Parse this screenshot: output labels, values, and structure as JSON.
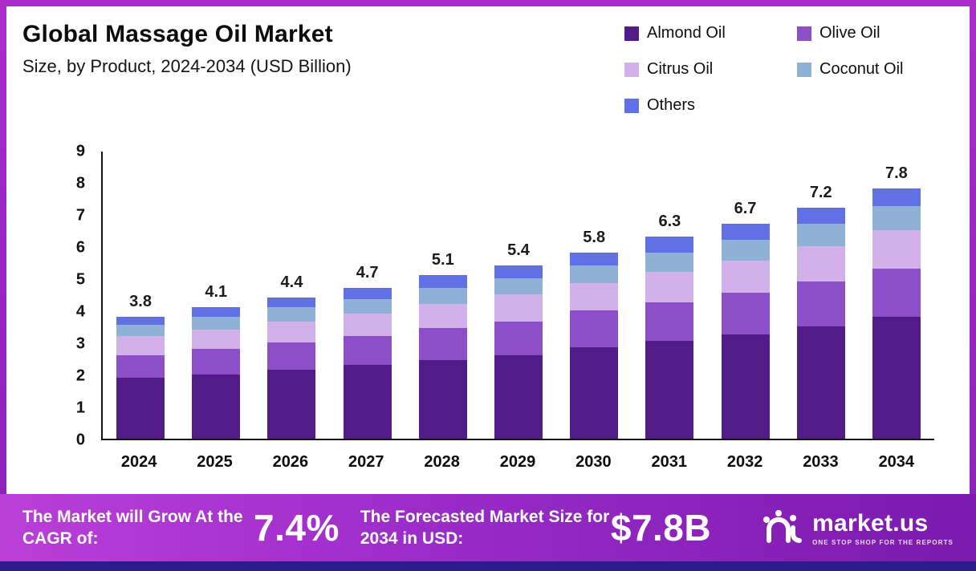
{
  "header": {
    "title": "Global Massage Oil Market",
    "subtitle": "Size, by Product, 2024-2034 (USD Billion)"
  },
  "chart_data": {
    "type": "bar",
    "stacked": true,
    "title": "Global Massage Oil Market Size, by Product, 2024-2034 (USD Billion)",
    "categories": [
      "2024",
      "2025",
      "2026",
      "2027",
      "2028",
      "2029",
      "2030",
      "2031",
      "2032",
      "2033",
      "2034"
    ],
    "series": [
      {
        "name": "Almond Oil",
        "color": "#511c87",
        "values": [
          1.9,
          2.0,
          2.15,
          2.3,
          2.45,
          2.6,
          2.85,
          3.05,
          3.25,
          3.5,
          3.8
        ]
      },
      {
        "name": "Olive Oil",
        "color": "#8d4fc7",
        "values": [
          0.7,
          0.8,
          0.85,
          0.9,
          1.0,
          1.05,
          1.15,
          1.2,
          1.3,
          1.4,
          1.5
        ]
      },
      {
        "name": "Citrus Oil",
        "color": "#d2b0ea",
        "values": [
          0.6,
          0.6,
          0.65,
          0.7,
          0.75,
          0.85,
          0.85,
          0.95,
          1.0,
          1.1,
          1.2
        ]
      },
      {
        "name": "Coconut Oil",
        "color": "#8fb1d6",
        "values": [
          0.35,
          0.4,
          0.45,
          0.45,
          0.5,
          0.5,
          0.55,
          0.6,
          0.65,
          0.7,
          0.75
        ]
      },
      {
        "name": "Others",
        "color": "#6170e4",
        "values": [
          0.25,
          0.3,
          0.3,
          0.35,
          0.4,
          0.4,
          0.4,
          0.5,
          0.5,
          0.5,
          0.55
        ]
      }
    ],
    "totals": [
      "3.8",
      "4.1",
      "4.4",
      "4.7",
      "5.1",
      "5.4",
      "5.8",
      "6.3",
      "6.7",
      "7.2",
      "7.8"
    ],
    "ylim": [
      0,
      9
    ],
    "yticks": [
      0,
      1,
      2,
      3,
      4,
      5,
      6,
      7,
      8,
      9
    ],
    "grid": false,
    "legend_position": "top-right"
  },
  "footer": {
    "cagr_label": "The Market will Grow At the CAGR of:",
    "cagr_value": "7.4%",
    "forecast_label": "The Forecasted Market Size for 2034 in USD:",
    "forecast_value": "$7.8B",
    "brand": "market.us",
    "brand_tagline": "ONE STOP SHOP FOR THE REPORTS"
  }
}
